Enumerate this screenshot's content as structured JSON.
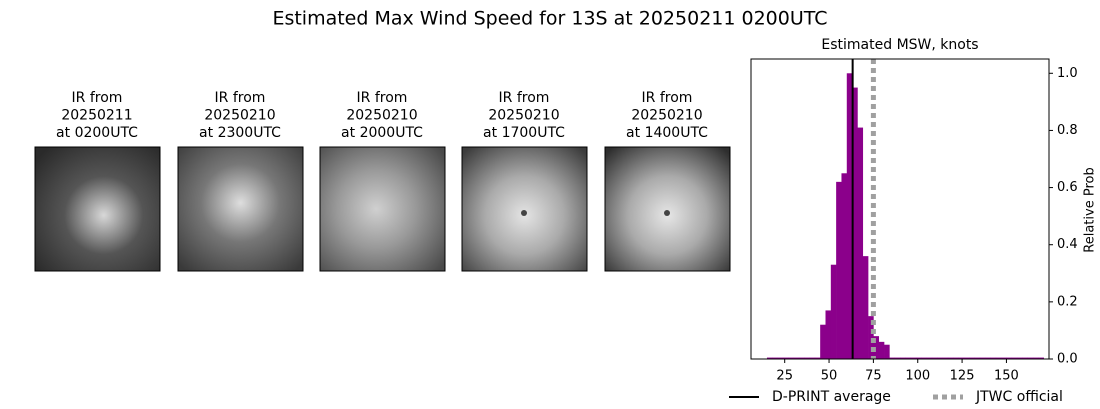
{
  "title": "Estimated Max Wind Speed for 13S at 20250211 0200UTC",
  "panels": [
    {
      "label_lines": [
        "IR from",
        "20250211",
        "at 0200UTC"
      ]
    },
    {
      "label_lines": [
        "IR from",
        "20250210",
        "at 2300UTC"
      ]
    },
    {
      "label_lines": [
        "IR from",
        "20250210",
        "at 2000UTC"
      ]
    },
    {
      "label_lines": [
        "IR from",
        "20250210",
        "at 1700UTC"
      ]
    },
    {
      "label_lines": [
        "IR from",
        "20250210",
        "at 1400UTC"
      ]
    }
  ],
  "chart_data": {
    "type": "histogram",
    "title": "Estimated MSW, knots",
    "ylabel": "Relative Prob",
    "color": "#8b008b",
    "bins": [
      15,
      18,
      21,
      24,
      27,
      30,
      33,
      36,
      39,
      42,
      45,
      48,
      51,
      54,
      57,
      60,
      63,
      66,
      69,
      72,
      75,
      78,
      81,
      84,
      87,
      90,
      93,
      96,
      99,
      102,
      105,
      108,
      111,
      114,
      117,
      120,
      123,
      126,
      129,
      132,
      135,
      138,
      141,
      144,
      147,
      150,
      153,
      156,
      159,
      162,
      165,
      168,
      171
    ],
    "counts": [
      0.005,
      0.005,
      0.005,
      0.005,
      0.005,
      0.005,
      0.005,
      0.005,
      0.005,
      0.005,
      0.12,
      0.17,
      0.33,
      0.62,
      0.65,
      1.0,
      0.95,
      0.81,
      0.36,
      0.15,
      0.08,
      0.06,
      0.05,
      0.005,
      0.005,
      0.005,
      0.005,
      0.005,
      0.005,
      0.005,
      0.005,
      0.005,
      0.005,
      0.005,
      0.005,
      0.005,
      0.005,
      0.005,
      0.005,
      0.005,
      0.005,
      0.005,
      0.005,
      0.005,
      0.005,
      0.005,
      0.005,
      0.005,
      0.005,
      0.005,
      0.005,
      0.005
    ],
    "xlim": [
      6,
      174
    ],
    "ylim": [
      0,
      1.05
    ],
    "xticks": [
      25,
      50,
      75,
      100,
      125,
      150
    ],
    "yticks": [
      {
        "value": 0,
        "label": "0.0"
      },
      {
        "value": 0.2,
        "label": "0.2"
      },
      {
        "value": 0.4,
        "label": "0.4"
      },
      {
        "value": 0.6,
        "label": "0.6"
      },
      {
        "value": 0.8,
        "label": "0.8"
      },
      {
        "value": 1,
        "label": "1.0"
      }
    ],
    "lines": [
      {
        "name": "D-PRINT average",
        "x": 63.3,
        "color": "#000000",
        "style": "solid"
      },
      {
        "name": "JTWC official",
        "x": 75,
        "color": "#a0a0a0",
        "style": "dotted"
      }
    ]
  }
}
